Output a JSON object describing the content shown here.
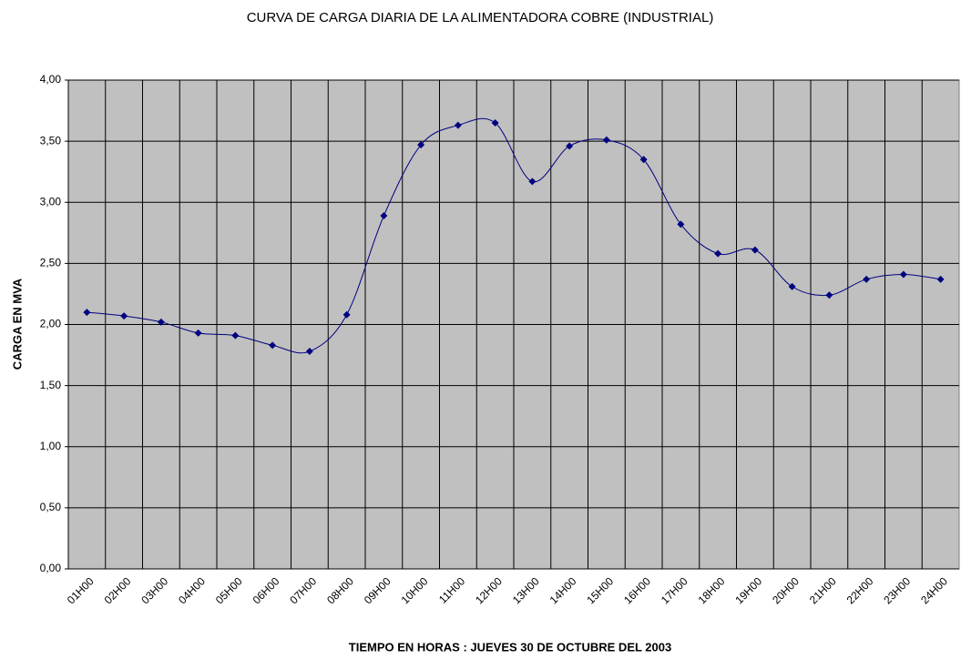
{
  "chart_data": {
    "type": "line",
    "title": "CURVA DE CARGA DIARIA DE LA ALIMENTADORA COBRE (INDUSTRIAL)",
    "x_label": "TIEMPO EN HORAS : JUEVES 30 DE OCTUBRE DEL 2003",
    "y_label": "CARGA EN MVA",
    "categories": [
      "01H00",
      "02H00",
      "03H00",
      "04H00",
      "05H00",
      "06H00",
      "07H00",
      "08H00",
      "09H00",
      "10H00",
      "11H00",
      "12H00",
      "13H00",
      "14H00",
      "15H00",
      "16H00",
      "17H00",
      "18H00",
      "19H00",
      "20H00",
      "21H00",
      "22H00",
      "23H00",
      "24H00"
    ],
    "series": [
      {
        "color": "#000080",
        "values": [
          2.1,
          2.07,
          2.02,
          1.93,
          1.91,
          1.83,
          1.78,
          2.08,
          2.89,
          3.47,
          3.63,
          3.65,
          3.17,
          3.46,
          3.51,
          3.35,
          2.82,
          2.58,
          2.61,
          2.31,
          2.24,
          2.37,
          2.41,
          2.37
        ]
      }
    ],
    "ylim": [
      0,
      4
    ],
    "yticks": [
      {
        "value": 0,
        "label": "0,00"
      },
      {
        "value": 0.5,
        "label": "0,50"
      },
      {
        "value": 1,
        "label": "1,00"
      },
      {
        "value": 1.5,
        "label": "1,50"
      },
      {
        "value": 2,
        "label": "2,00"
      },
      {
        "value": 2.5,
        "label": "2,50"
      },
      {
        "value": 3,
        "label": "3,00"
      },
      {
        "value": 3.5,
        "label": "3,50"
      },
      {
        "value": 4,
        "label": "4,00"
      }
    ],
    "grid": true,
    "plot_background": "#c0c0c0"
  }
}
